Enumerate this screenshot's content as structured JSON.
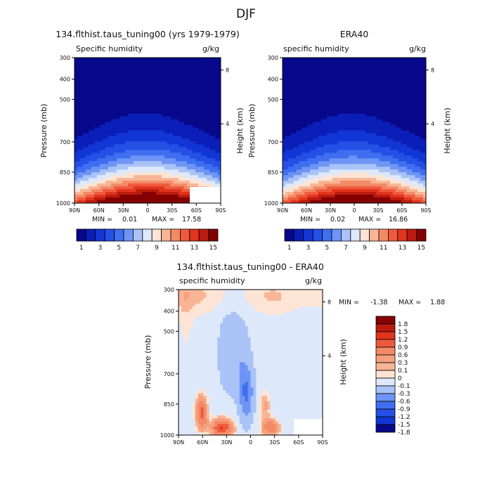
{
  "page": {
    "title": "DJF"
  },
  "colors": {
    "abs": [
      "#08088a",
      "#0b1fb8",
      "#1236d6",
      "#2550e6",
      "#3f6ff0",
      "#6e95f5",
      "#a9c3f7",
      "#dde8fb",
      "#fde4d4",
      "#f8b595",
      "#f38a67",
      "#ef5a3d",
      "#e0341d",
      "#bb1b0f",
      "#840000"
    ],
    "diff": [
      "#08088a",
      "#1236d6",
      "#2550e6",
      "#3f6ff0",
      "#6e95f5",
      "#a9c3f7",
      "#dde8fb",
      "#fde4d4",
      "#f8b595",
      "#f5a07e",
      "#f38a67",
      "#ef5a3d",
      "#e0341d",
      "#bb1b0f",
      "#840000"
    ]
  },
  "chart_data": [
    {
      "id": "model",
      "type": "heatmap",
      "title": "134.flthist.taus_tuning00 (yrs 1979-1979)",
      "left_label": "Specific humidity",
      "right_label": "g/kg",
      "ylabel": "Pressure (mb)",
      "ylabel_right": "Height (km)",
      "x_ticks": [
        "90N",
        "60N",
        "30N",
        "0",
        "30S",
        "60S",
        "90S"
      ],
      "y_ticks": [
        "300",
        "400",
        "500",
        "700",
        "850",
        "1000"
      ],
      "height_ticks": [
        "8",
        "4"
      ],
      "min_label": "MIN =",
      "min_value": "0.01",
      "max_label": "MAX =",
      "max_value": "17.58",
      "colorbar_labels": [
        "1",
        "3",
        "5",
        "7",
        "9",
        "11",
        "13",
        "15"
      ]
    },
    {
      "id": "obs",
      "type": "heatmap",
      "title": "ERA40",
      "left_label": "specific humidity",
      "right_label": "g/kg",
      "ylabel": "Pressure (mb)",
      "ylabel_right": "Height (km)",
      "x_ticks": [
        "90N",
        "60N",
        "30N",
        "0",
        "30S",
        "60S",
        "90S"
      ],
      "y_ticks": [
        "300",
        "400",
        "500",
        "700",
        "850",
        "1000"
      ],
      "height_ticks": [
        "8",
        "4"
      ],
      "min_label": "MIN =",
      "min_value": "0.02",
      "max_label": "MAX =",
      "max_value": "16.86",
      "colorbar_labels": [
        "1",
        "3",
        "5",
        "7",
        "9",
        "11",
        "13",
        "15"
      ]
    },
    {
      "id": "diff",
      "type": "heatmap",
      "title": "134.flthist.taus_tuning00 - ERA40",
      "left_label": "specific humidity",
      "right_label": "g/kg",
      "ylabel": "Pressure (mb)",
      "ylabel_right": "Height (km)",
      "x_ticks": [
        "90N",
        "60N",
        "30N",
        "0",
        "30S",
        "60S",
        "90S"
      ],
      "y_ticks": [
        "300",
        "400",
        "500",
        "700",
        "850",
        "1000"
      ],
      "height_ticks": [
        "8",
        "4"
      ],
      "min_label": "MIN =",
      "min_value": "-1.38",
      "max_label": "MAX =",
      "max_value": "1.88",
      "colorbar_labels": [
        "1.8",
        "1.5",
        "1.2",
        "0.9",
        "0.6",
        "0.3",
        "0.1",
        "0",
        "-0.1",
        "-0.3",
        "-0.6",
        "-0.9",
        "-1.2",
        "-1.5",
        "-1.8"
      ]
    }
  ]
}
